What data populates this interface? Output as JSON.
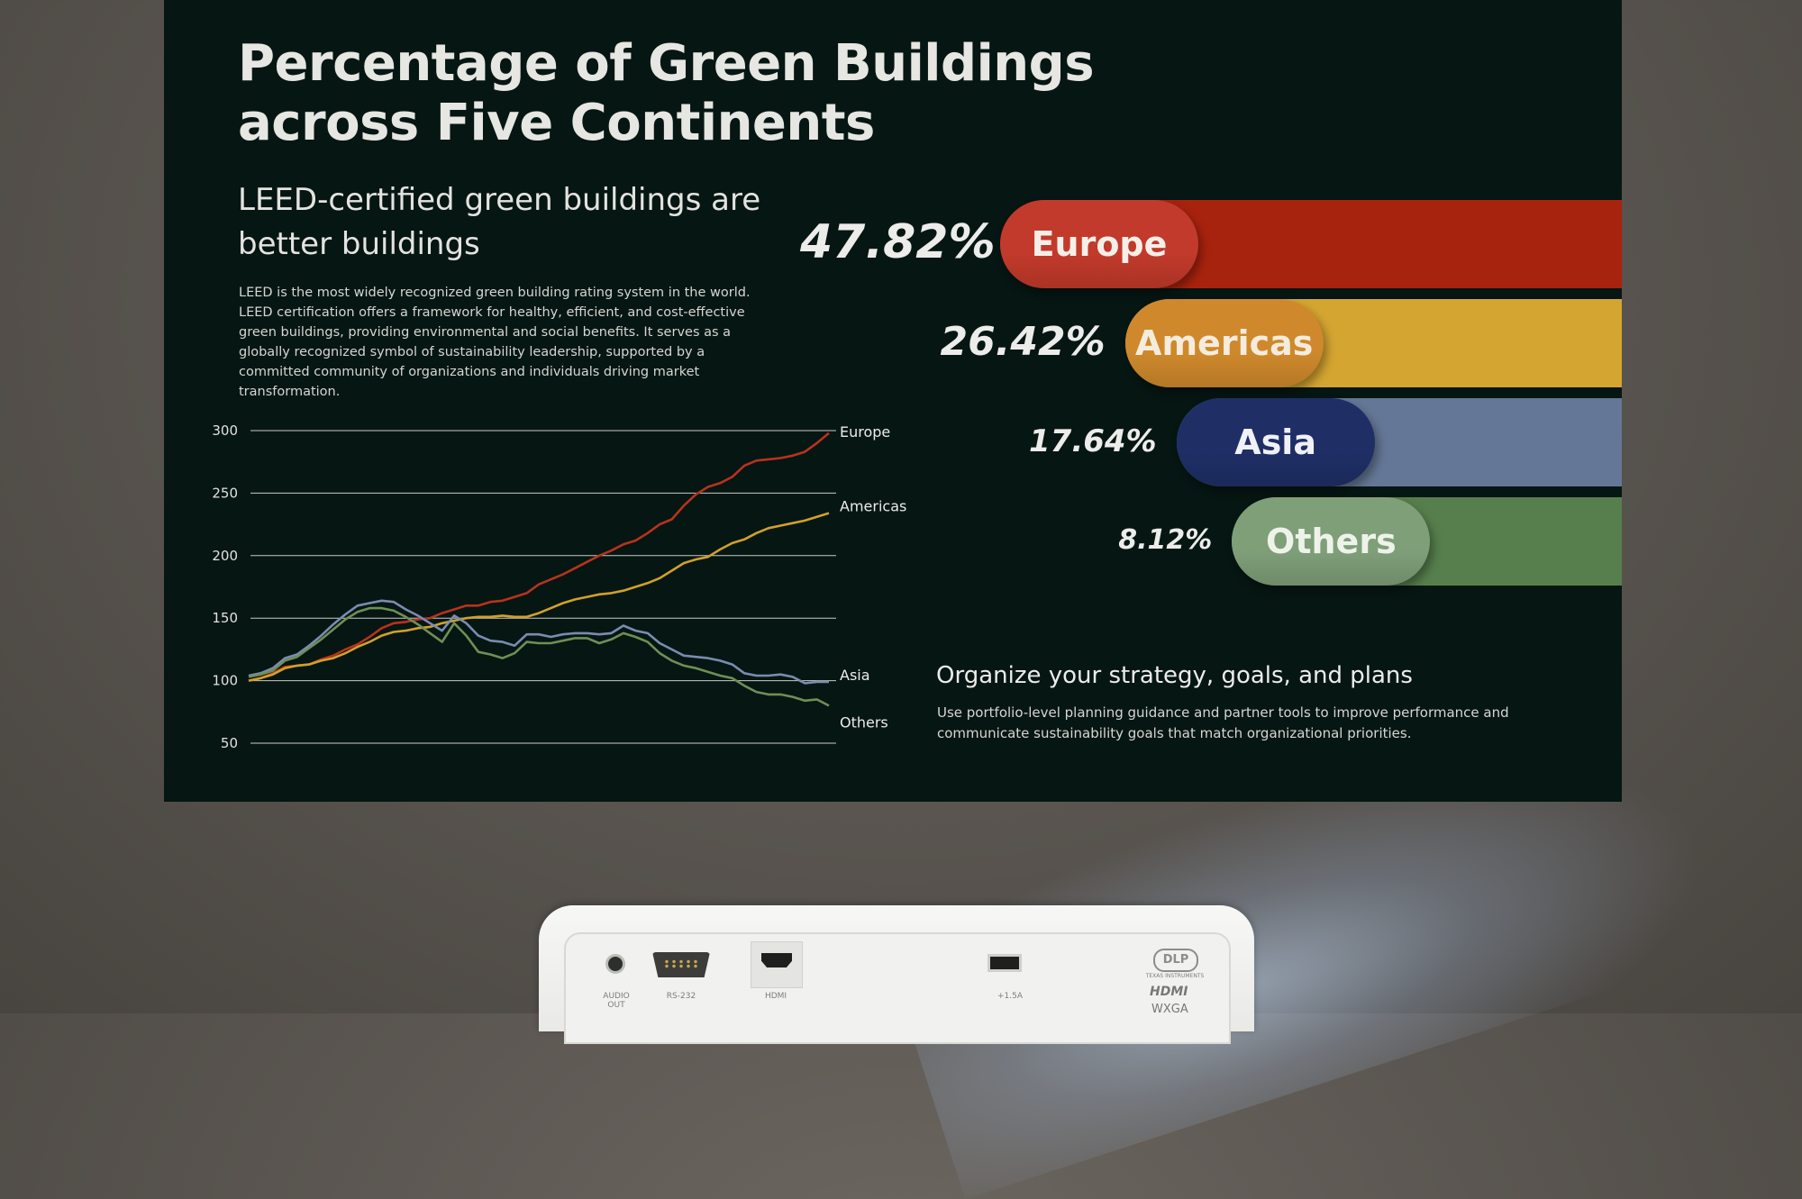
{
  "slide": {
    "title": "Percentage of Green Buildings across Five Continents",
    "subtitle": "LEED-certified green buildings are better buildings",
    "body": "LEED is the most widely recognized green building rating system in the world. LEED certification offers a framework for healthy, efficient, and cost-effective green buildings, providing environmental and social benefits. It serves as a globally recognized symbol of sustainability leadership, supported by a committed community of organizations and individuals driving market transformation.",
    "section_title": "Organize your strategy, goals, and plans",
    "section_body": "Use portfolio-level planning guidance and partner tools to improve performance and communicate sustainability goals that match organizational priorities."
  },
  "chart_data": [
    {
      "type": "line",
      "ylim": [
        50,
        300
      ],
      "yticks": [
        300,
        250,
        200,
        150,
        100,
        50
      ],
      "grid": true,
      "series": [
        {
          "name": "Europe",
          "color": "#b8321c",
          "values": [
            100,
            102,
            106,
            111,
            112,
            113,
            117,
            120,
            125,
            129,
            135,
            142,
            146,
            147,
            149,
            150,
            154,
            157,
            160,
            160,
            163,
            164,
            167,
            170,
            177,
            181,
            185,
            190,
            195,
            200,
            204,
            209,
            212,
            218,
            225,
            229,
            240,
            249,
            255,
            258,
            263,
            272,
            276,
            277,
            278,
            280,
            283,
            290,
            298
          ]
        },
        {
          "name": "Americas",
          "color": "#d2a02b",
          "values": [
            100,
            102,
            105,
            110,
            112,
            113,
            116,
            118,
            122,
            127,
            131,
            136,
            139,
            140,
            142,
            143,
            146,
            148,
            150,
            151,
            151,
            152,
            151,
            151,
            154,
            158,
            162,
            165,
            167,
            169,
            170,
            172,
            175,
            178,
            182,
            188,
            194,
            197,
            199,
            205,
            210,
            213,
            218,
            222,
            224,
            226,
            228,
            231,
            234
          ]
        },
        {
          "name": "Asia",
          "color": "#7b8cb0",
          "values": [
            104,
            106,
            110,
            118,
            121,
            128,
            136,
            145,
            153,
            160,
            162,
            164,
            163,
            157,
            152,
            146,
            140,
            152,
            146,
            136,
            132,
            131,
            128,
            137,
            137,
            135,
            137,
            138,
            138,
            137,
            138,
            144,
            140,
            138,
            130,
            125,
            120,
            119,
            118,
            116,
            113,
            106,
            104,
            104,
            105,
            103,
            98,
            99,
            99
          ]
        },
        {
          "name": "Others",
          "color": "#6f8f55",
          "values": [
            103,
            105,
            108,
            116,
            119,
            126,
            133,
            141,
            149,
            155,
            158,
            158,
            156,
            151,
            145,
            138,
            131,
            146,
            136,
            123,
            121,
            118,
            122,
            131,
            130,
            130,
            132,
            134,
            134,
            130,
            133,
            138,
            135,
            131,
            122,
            116,
            112,
            110,
            107,
            104,
            102,
            96,
            91,
            89,
            89,
            87,
            84,
            85,
            80
          ]
        }
      ]
    },
    {
      "type": "bar",
      "categories": [
        "Europe",
        "Americas",
        "Asia",
        "Others"
      ],
      "values": [
        47.82,
        26.42,
        17.64,
        8.12
      ],
      "labels": [
        "47.82%",
        "26.42%",
        "17.64%",
        "8.12%"
      ],
      "colors": {
        "track": [
          "#a8230e",
          "#d5a531",
          "#647796",
          "#577f4d"
        ],
        "pill": [
          "#c23a2b",
          "#cf892c",
          "#1f2f66",
          "#7f9f79"
        ],
        "pill_text": [
          "#f4efe8",
          "#f4ecdd",
          "#f0f1f6",
          "#eef3ea"
        ]
      }
    }
  ],
  "projector": {
    "audio_label": "AUDIO OUT",
    "rs232_label": "RS-232",
    "hdmi_label": "HDMI",
    "usb_label": "+1.5A",
    "dlp_logo": "DLP",
    "ti_label": "TEXAS INSTRUMENTS",
    "hdmi_logo": "HDMI",
    "resolution": "WXGA"
  }
}
